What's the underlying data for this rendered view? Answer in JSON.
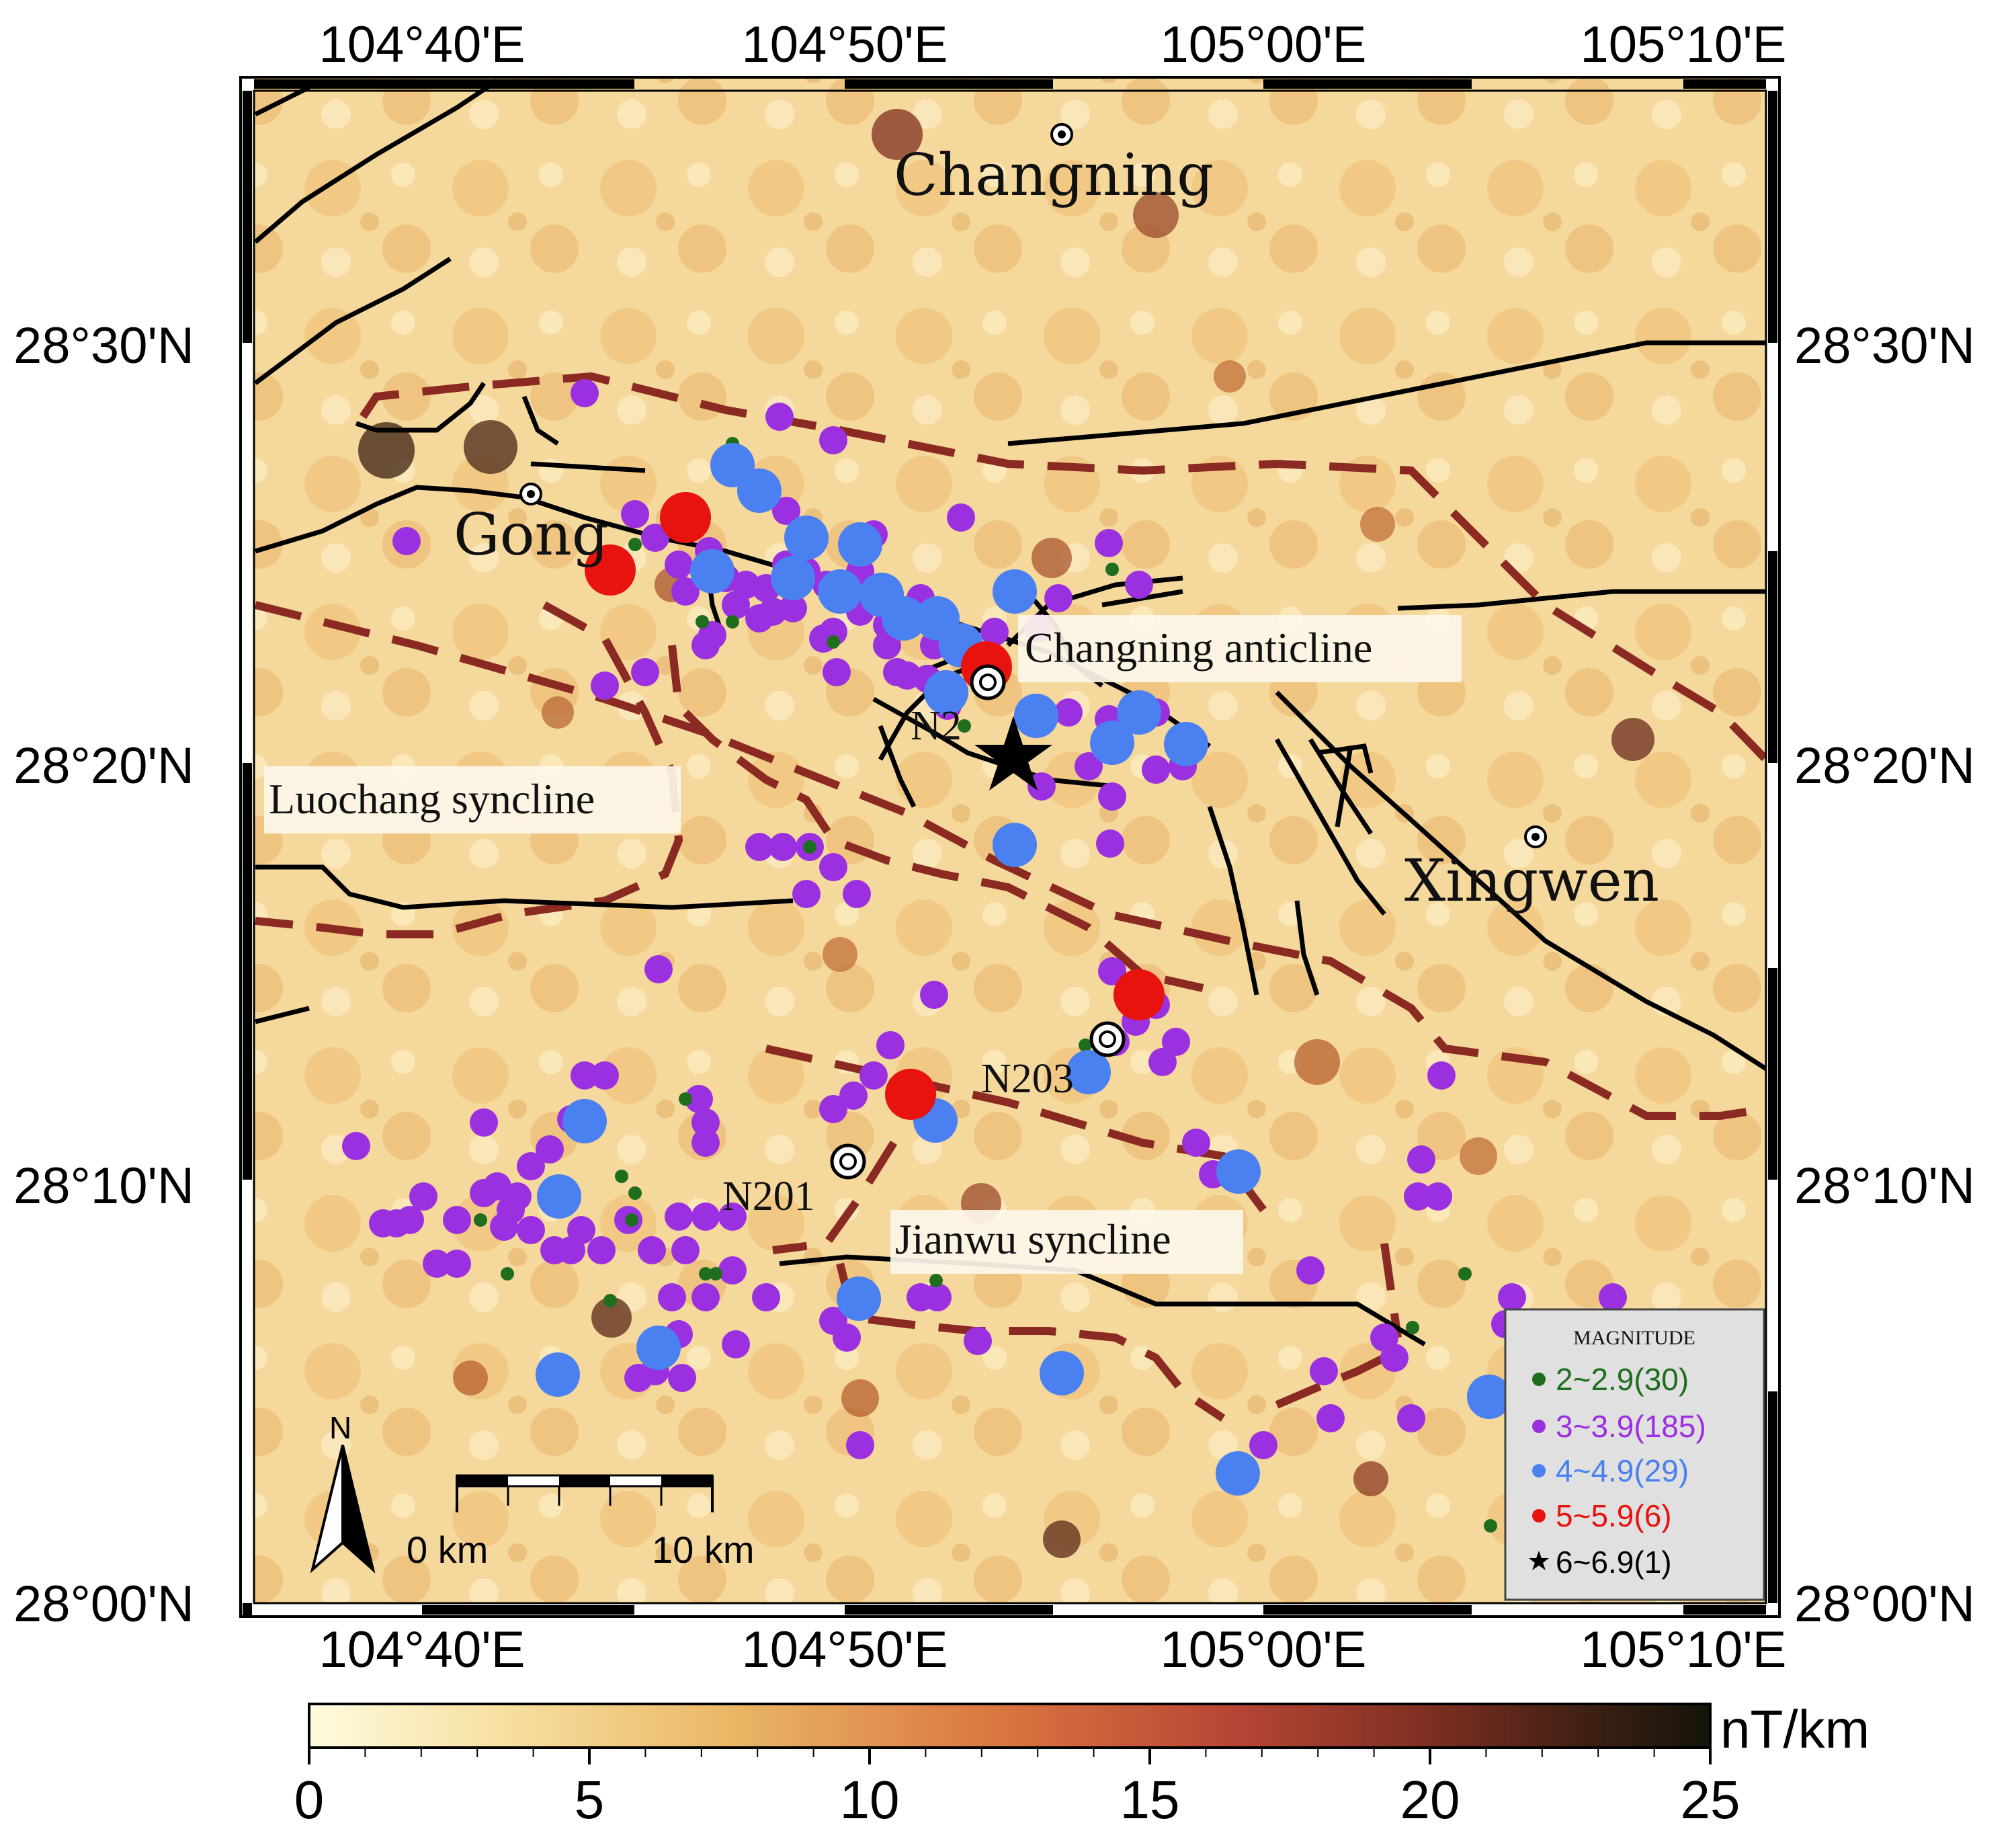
{
  "map": {
    "longitude_labels": [
      "104°40'E",
      "104°50'E",
      "105°00'E",
      "105°10'E"
    ],
    "latitude_labels": [
      "28°30'N",
      "28°20'N",
      "28°10'N",
      "28°00'N"
    ],
    "towns": [
      {
        "name": "Changning"
      },
      {
        "name": "Gong"
      },
      {
        "name": "Xingwen"
      }
    ],
    "structures": [
      {
        "name": "Changning anticline"
      },
      {
        "name": "Luochang syncline"
      },
      {
        "name": "Jianwu syncline"
      }
    ],
    "wells": [
      {
        "name": "N2"
      },
      {
        "name": "N203"
      },
      {
        "name": "N201"
      }
    ],
    "north_arrow": {
      "label": "N",
      "icon": "north-arrow-icon"
    },
    "scale_bar": {
      "start_label": "0 km",
      "end_label": "10 km"
    }
  },
  "legend": {
    "title": "MAGNITUDE",
    "items": [
      {
        "label": "2~2.9(30)",
        "color": "#1e6e1e",
        "symbol": "dot"
      },
      {
        "label": "3~3.9(185)",
        "color": "#9b30e0",
        "symbol": "dot"
      },
      {
        "label": "4~4.9(29)",
        "color": "#4a80f0",
        "symbol": "dot"
      },
      {
        "label": "5~5.9(6)",
        "color": "#e8120f",
        "symbol": "dot"
      },
      {
        "label": "6~6.9(1)",
        "color": "#000000",
        "symbol": "star"
      }
    ]
  },
  "colorbar": {
    "unit": "nT/km",
    "ticks": [
      "0",
      "5",
      "10",
      "15",
      "20",
      "25"
    ],
    "range": [
      0,
      25
    ],
    "colors": [
      "#fdfbe0",
      "#f7dfa0",
      "#eab766",
      "#d9733f",
      "#b74535",
      "#7d2f22",
      "#3a1f12",
      "#14140a"
    ]
  },
  "colors": {
    "fault": "#000000",
    "syncline_outline": "#8b2a22",
    "m2": "#1e6e1e",
    "m3": "#9b30e0",
    "m4": "#4a80f0",
    "m5": "#e8120f"
  }
}
